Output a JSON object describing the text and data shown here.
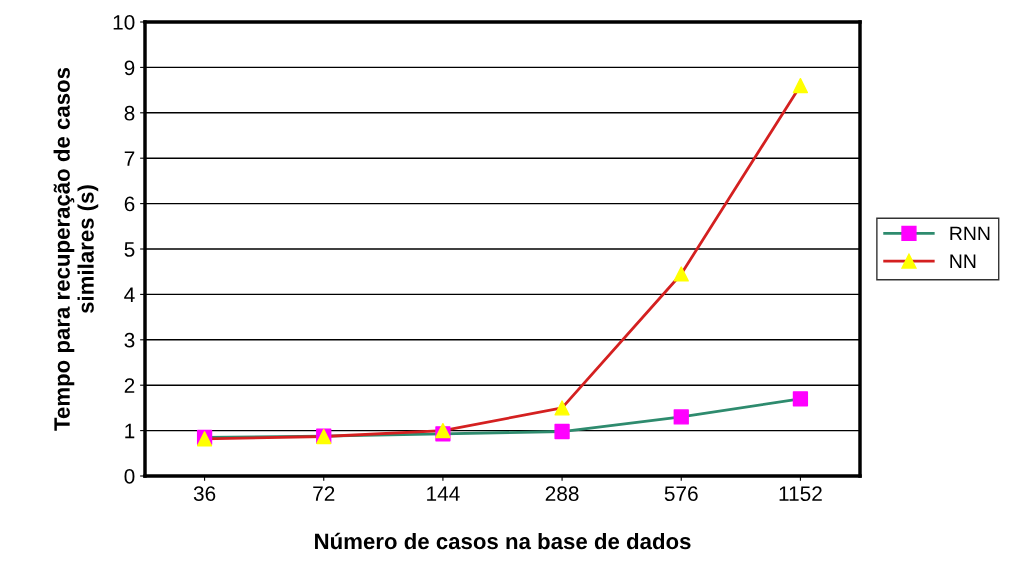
{
  "chart_data": {
    "type": "line",
    "xlabel": "Número de casos na base de dados",
    "ylabel": "Tempo para recuperação de casos\nsimilares (s)",
    "categories": [
      "36",
      "72",
      "144",
      "288",
      "576",
      "1152"
    ],
    "series": [
      {
        "name": "RNN",
        "color": "#2e8b6e",
        "marker": "square",
        "colors": [
          "#ff00ff",
          "#ff00ff",
          "#ff00ff",
          "#ff00ff",
          "#ff00ff",
          "#ff00ff"
        ],
        "values": [
          0.85,
          0.88,
          0.93,
          0.98,
          1.3,
          1.7
        ]
      },
      {
        "name": "NN",
        "color": "#d42020",
        "marker": "triangle",
        "colors": [
          "#ffff00",
          "#ffff00",
          "#ffff00",
          "#ffff00",
          "#ffff00",
          "#ffff00"
        ],
        "values": [
          0.82,
          0.87,
          1.0,
          1.5,
          4.45,
          8.6
        ]
      }
    ],
    "ylim": [
      0,
      10
    ],
    "yticks": [
      0,
      1,
      2,
      3,
      4,
      5,
      6,
      7,
      8,
      9,
      10
    ],
    "grid": "y",
    "legend": "right"
  }
}
